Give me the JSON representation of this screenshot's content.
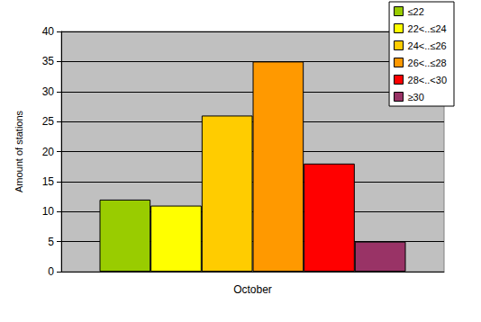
{
  "chart_data": {
    "type": "bar",
    "categories": [
      "October"
    ],
    "series": [
      {
        "name": "≤22",
        "color": "#99cc00",
        "values": [
          12
        ]
      },
      {
        "name": "22<..≤24",
        "color": "#ffff00",
        "values": [
          11
        ]
      },
      {
        "name": "24<..≤26",
        "color": "#ffcc00",
        "values": [
          26
        ]
      },
      {
        "name": "26<..≤28",
        "color": "#ff9900",
        "values": [
          35
        ]
      },
      {
        "name": "28<..<30",
        "color": "#ff0000",
        "values": [
          18
        ]
      },
      {
        "name": "≥30",
        "color": "#993366",
        "values": [
          5
        ]
      }
    ],
    "y_label": "Amount of stations",
    "ylim": [
      0,
      40
    ],
    "yticks": [
      0,
      5,
      10,
      15,
      20,
      25,
      30,
      35,
      40
    ],
    "grid": true,
    "legend": "top-right"
  }
}
